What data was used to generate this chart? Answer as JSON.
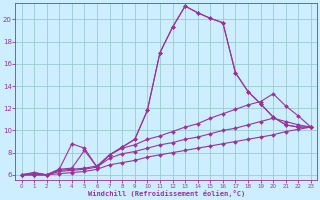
{
  "bg_color": "#cceeff",
  "grid_color": "#99cccc",
  "line_color": "#993399",
  "marker_color": "#993399",
  "xlabel": "Windchill (Refroidissement éolien,°C)",
  "xlabel_color": "#993399",
  "tick_color": "#993399",
  "xlim": [
    -0.5,
    23.5
  ],
  "ylim": [
    5.5,
    21.5
  ],
  "yticks": [
    6,
    8,
    10,
    12,
    14,
    16,
    18,
    20
  ],
  "xticks": [
    0,
    1,
    2,
    3,
    4,
    5,
    6,
    7,
    8,
    9,
    10,
    11,
    12,
    13,
    14,
    15,
    16,
    17,
    18,
    19,
    20,
    21,
    22,
    23
  ],
  "lines": [
    {
      "x": [
        0,
        1,
        2,
        3,
        4,
        5,
        6,
        7,
        8,
        9,
        10,
        11,
        12,
        13,
        14,
        15,
        16,
        17,
        18,
        19,
        20,
        21,
        22,
        23
      ],
      "y": [
        6.0,
        6.2,
        6.0,
        6.5,
        6.6,
        8.2,
        6.7,
        7.8,
        8.5,
        9.2,
        11.8,
        17.0,
        19.3,
        21.2,
        20.6,
        20.1,
        19.7,
        15.2,
        13.5,
        12.4,
        11.2,
        10.5,
        10.3,
        10.3
      ]
    },
    {
      "x": [
        0,
        1,
        2,
        3,
        4,
        5,
        6,
        7,
        8,
        9,
        10,
        11,
        12,
        13,
        14,
        15,
        16,
        17,
        18,
        19,
        20,
        21,
        22,
        23
      ],
      "y": [
        6.0,
        6.2,
        6.0,
        6.5,
        8.8,
        8.4,
        6.7,
        7.8,
        8.5,
        9.2,
        11.8,
        17.0,
        19.3,
        21.2,
        20.6,
        20.1,
        19.7,
        15.2,
        13.5,
        12.4,
        11.2,
        10.5,
        10.3,
        10.3
      ]
    },
    {
      "x": [
        0,
        1,
        2,
        3,
        4,
        5,
        6,
        7,
        8,
        9,
        10,
        11,
        12,
        13,
        14,
        15,
        16,
        17,
        18,
        19,
        20,
        21,
        22,
        23
      ],
      "y": [
        6.0,
        6.0,
        6.0,
        6.4,
        6.5,
        6.6,
        6.8,
        7.8,
        8.4,
        8.7,
        9.2,
        9.5,
        9.9,
        10.3,
        10.6,
        11.1,
        11.5,
        11.9,
        12.3,
        12.6,
        13.3,
        12.2,
        11.3,
        10.3
      ]
    },
    {
      "x": [
        0,
        1,
        2,
        3,
        4,
        5,
        6,
        7,
        8,
        9,
        10,
        11,
        12,
        13,
        14,
        15,
        16,
        17,
        18,
        19,
        20,
        21,
        22,
        23
      ],
      "y": [
        6.0,
        6.0,
        6.0,
        6.3,
        6.4,
        6.5,
        6.7,
        7.5,
        7.9,
        8.1,
        8.4,
        8.7,
        8.9,
        9.2,
        9.4,
        9.7,
        10.0,
        10.2,
        10.5,
        10.8,
        11.1,
        10.8,
        10.5,
        10.3
      ]
    },
    {
      "x": [
        0,
        1,
        2,
        3,
        4,
        5,
        6,
        7,
        8,
        9,
        10,
        11,
        12,
        13,
        14,
        15,
        16,
        17,
        18,
        19,
        20,
        21,
        22,
        23
      ],
      "y": [
        6.0,
        6.0,
        6.0,
        6.1,
        6.2,
        6.3,
        6.5,
        6.9,
        7.1,
        7.3,
        7.6,
        7.8,
        8.0,
        8.2,
        8.4,
        8.6,
        8.8,
        9.0,
        9.2,
        9.4,
        9.6,
        9.9,
        10.1,
        10.3
      ]
    }
  ]
}
